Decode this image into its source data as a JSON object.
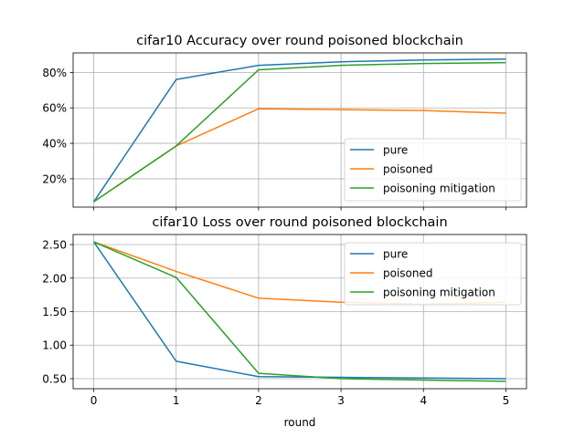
{
  "figure": {
    "xlabel": "round"
  },
  "colors": {
    "pure": "#1f77b4",
    "poisoned": "#ff7f0e",
    "mitigation": "#2ca02c",
    "grid": "#b0b0b0"
  },
  "chart_data": [
    {
      "type": "line",
      "title": "cifar10 Accuracy over round poisoned blockchain",
      "x": [
        0,
        1,
        2,
        3,
        4,
        5
      ],
      "xticks": [
        "0",
        "1",
        "2",
        "3",
        "4",
        "5"
      ],
      "xlim": [
        -0.25,
        5.25
      ],
      "ylim": [
        0.04,
        0.91
      ],
      "yticks": [
        0.2,
        0.4,
        0.6,
        0.8
      ],
      "ytick_labels": [
        "20%",
        "40%",
        "60%",
        "80%"
      ],
      "grid": true,
      "legend": "lower-right",
      "series": [
        {
          "name": "pure",
          "color": "#1f77b4",
          "values": [
            0.07,
            0.76,
            0.84,
            0.86,
            0.87,
            0.875
          ]
        },
        {
          "name": "poisoned",
          "color": "#ff7f0e",
          "values": [
            0.07,
            0.385,
            0.595,
            0.59,
            0.585,
            0.57
          ]
        },
        {
          "name": "poisoning mitigation",
          "color": "#2ca02c",
          "values": [
            0.07,
            0.385,
            0.815,
            0.84,
            0.85,
            0.855
          ]
        }
      ]
    },
    {
      "type": "line",
      "title": "cifar10 Loss over round poisoned blockchain",
      "x": [
        0,
        1,
        2,
        3,
        4,
        5
      ],
      "xticks": [
        "0",
        "1",
        "2",
        "3",
        "4",
        "5"
      ],
      "xlabel": "round",
      "xlim": [
        -0.25,
        5.25
      ],
      "ylim": [
        0.35,
        2.65
      ],
      "yticks": [
        0.5,
        1.0,
        1.5,
        2.0,
        2.5
      ],
      "ytick_labels": [
        "0.50",
        "1.00",
        "1.50",
        "2.00",
        "2.50"
      ],
      "grid": true,
      "legend": "upper-right",
      "series": [
        {
          "name": "pure",
          "color": "#1f77b4",
          "values": [
            2.54,
            0.76,
            0.53,
            0.52,
            0.51,
            0.5
          ]
        },
        {
          "name": "poisoned",
          "color": "#ff7f0e",
          "values": [
            2.54,
            2.1,
            1.7,
            1.64,
            1.61,
            1.64
          ]
        },
        {
          "name": "poisoning mitigation",
          "color": "#2ca02c",
          "values": [
            2.54,
            2.01,
            0.58,
            0.5,
            0.48,
            0.46
          ]
        }
      ]
    }
  ]
}
